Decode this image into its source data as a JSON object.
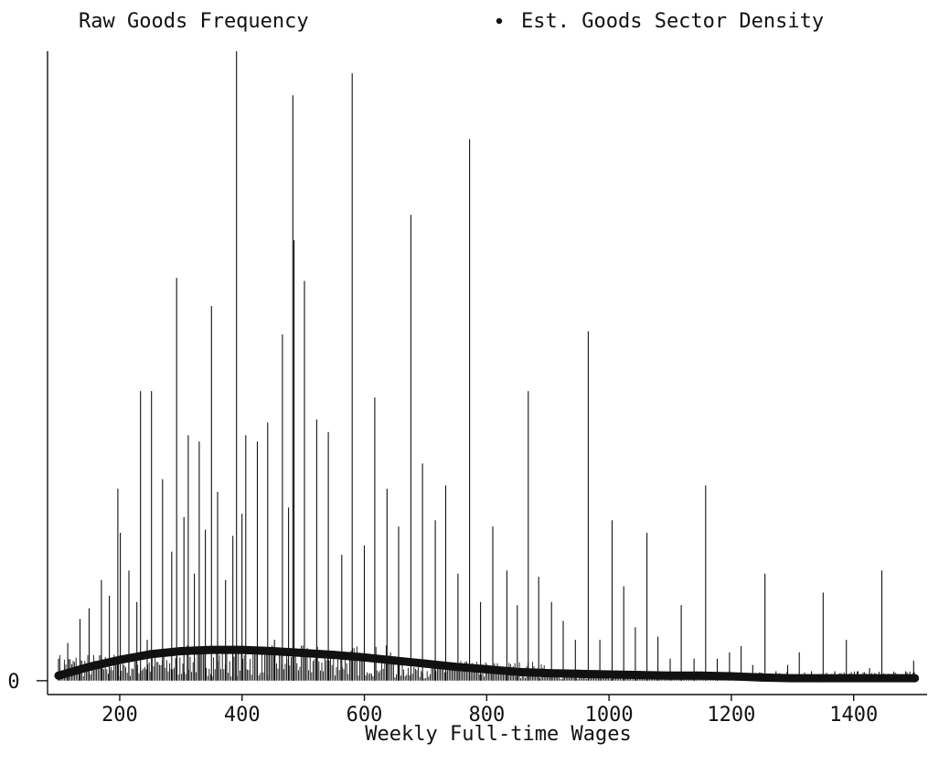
{
  "chart_data": {
    "type": "line",
    "xlabel": "Weekly Full-time Wages",
    "ylabel": "",
    "xlim": [
      82,
      1520
    ],
    "ylim": [
      -0.0022,
      0.1
    ],
    "x_ticks": [
      200,
      400,
      600,
      800,
      1000,
      1200,
      1400
    ],
    "x_tick_labels": [
      "200",
      "400",
      "600",
      "800",
      "1000",
      "1200",
      "1400"
    ],
    "y_ticks": [
      0
    ],
    "y_tick_labels": [
      "0"
    ],
    "legend": {
      "placement": "top",
      "entries": [
        {
          "label": "Raw Goods Frequency",
          "marker": "none"
        },
        {
          "label": "Est. Goods Sector Density",
          "marker": "dot"
        }
      ]
    },
    "series": [
      {
        "name": "Raw Goods Frequency",
        "style": "spikes",
        "points": [
          [
            100,
            0.0035
          ],
          [
            115,
            0.006
          ],
          [
            135,
            0.0098
          ],
          [
            150,
            0.0115
          ],
          [
            170,
            0.016
          ],
          [
            183,
            0.0135
          ],
          [
            197,
            0.0305
          ],
          [
            201,
            0.0235
          ],
          [
            215,
            0.0175
          ],
          [
            228,
            0.0125
          ],
          [
            234,
            0.046
          ],
          [
            245,
            0.0065
          ],
          [
            252,
            0.046
          ],
          [
            270,
            0.032
          ],
          [
            285,
            0.0205
          ],
          [
            293,
            0.064
          ],
          [
            305,
            0.026
          ],
          [
            312,
            0.039
          ],
          [
            322,
            0.017
          ],
          [
            330,
            0.038
          ],
          [
            340,
            0.024
          ],
          [
            350,
            0.0595
          ],
          [
            360,
            0.03
          ],
          [
            373,
            0.016
          ],
          [
            385,
            0.023
          ],
          [
            391,
            0.1
          ],
          [
            400,
            0.0265
          ],
          [
            406,
            0.039
          ],
          [
            425,
            0.038
          ],
          [
            442,
            0.041
          ],
          [
            453,
            0.0065
          ],
          [
            466,
            0.055
          ],
          [
            476,
            0.0275
          ],
          [
            483,
            0.093
          ],
          [
            485,
            0.07
          ],
          [
            502,
            0.0635
          ],
          [
            522,
            0.0415
          ],
          [
            541,
            0.0395
          ],
          [
            563,
            0.02
          ],
          [
            580,
            0.0965
          ],
          [
            600,
            0.0215
          ],
          [
            617,
            0.045
          ],
          [
            637,
            0.0305
          ],
          [
            656,
            0.0245
          ],
          [
            676,
            0.074
          ],
          [
            695,
            0.0345
          ],
          [
            716,
            0.0255
          ],
          [
            733,
            0.031
          ],
          [
            753,
            0.017
          ],
          [
            772,
            0.086
          ],
          [
            790,
            0.0125
          ],
          [
            810,
            0.0245
          ],
          [
            833,
            0.0175
          ],
          [
            850,
            0.012
          ],
          [
            868,
            0.046
          ],
          [
            885,
            0.0165
          ],
          [
            906,
            0.0125
          ],
          [
            925,
            0.0095
          ],
          [
            945,
            0.0065
          ],
          [
            966,
            0.0555
          ],
          [
            985,
            0.0065
          ],
          [
            1005,
            0.0255
          ],
          [
            1024,
            0.015
          ],
          [
            1043,
            0.0085
          ],
          [
            1062,
            0.0235
          ],
          [
            1080,
            0.007
          ],
          [
            1100,
            0.0035
          ],
          [
            1118,
            0.012
          ],
          [
            1139,
            0.0035
          ],
          [
            1158,
            0.031
          ],
          [
            1177,
            0.0035
          ],
          [
            1197,
            0.0045
          ],
          [
            1216,
            0.0055
          ],
          [
            1235,
            0.0025
          ],
          [
            1255,
            0.017
          ],
          [
            1273,
            0.0015
          ],
          [
            1292,
            0.0025
          ],
          [
            1311,
            0.0045
          ],
          [
            1331,
            0.0015
          ],
          [
            1350,
            0.014
          ],
          [
            1369,
            0.0015
          ],
          [
            1388,
            0.0065
          ],
          [
            1407,
            0.0015
          ],
          [
            1426,
            0.002
          ],
          [
            1446,
            0.0175
          ],
          [
            1465,
            0.001
          ],
          [
            1485,
            0.0015
          ],
          [
            1498,
            0.0032
          ]
        ]
      },
      {
        "name": "Est. Goods Sector Density",
        "style": "thick-line",
        "points": [
          [
            100,
            0.0008
          ],
          [
            150,
            0.0022
          ],
          [
            200,
            0.0033
          ],
          [
            250,
            0.0042
          ],
          [
            300,
            0.0047
          ],
          [
            350,
            0.0049
          ],
          [
            400,
            0.0049
          ],
          [
            450,
            0.0047
          ],
          [
            500,
            0.0044
          ],
          [
            550,
            0.0041
          ],
          [
            600,
            0.0037
          ],
          [
            650,
            0.0032
          ],
          [
            700,
            0.0027
          ],
          [
            750,
            0.0022
          ],
          [
            800,
            0.0018
          ],
          [
            850,
            0.0014
          ],
          [
            900,
            0.0012
          ],
          [
            950,
            0.0011
          ],
          [
            1000,
            0.001
          ],
          [
            1050,
            0.0009
          ],
          [
            1100,
            0.0008
          ],
          [
            1150,
            0.0008
          ],
          [
            1200,
            0.0007
          ],
          [
            1250,
            0.0005
          ],
          [
            1300,
            0.0004
          ],
          [
            1350,
            0.0004
          ],
          [
            1400,
            0.0004
          ],
          [
            1450,
            0.0004
          ],
          [
            1500,
            0.0004
          ]
        ]
      }
    ]
  }
}
